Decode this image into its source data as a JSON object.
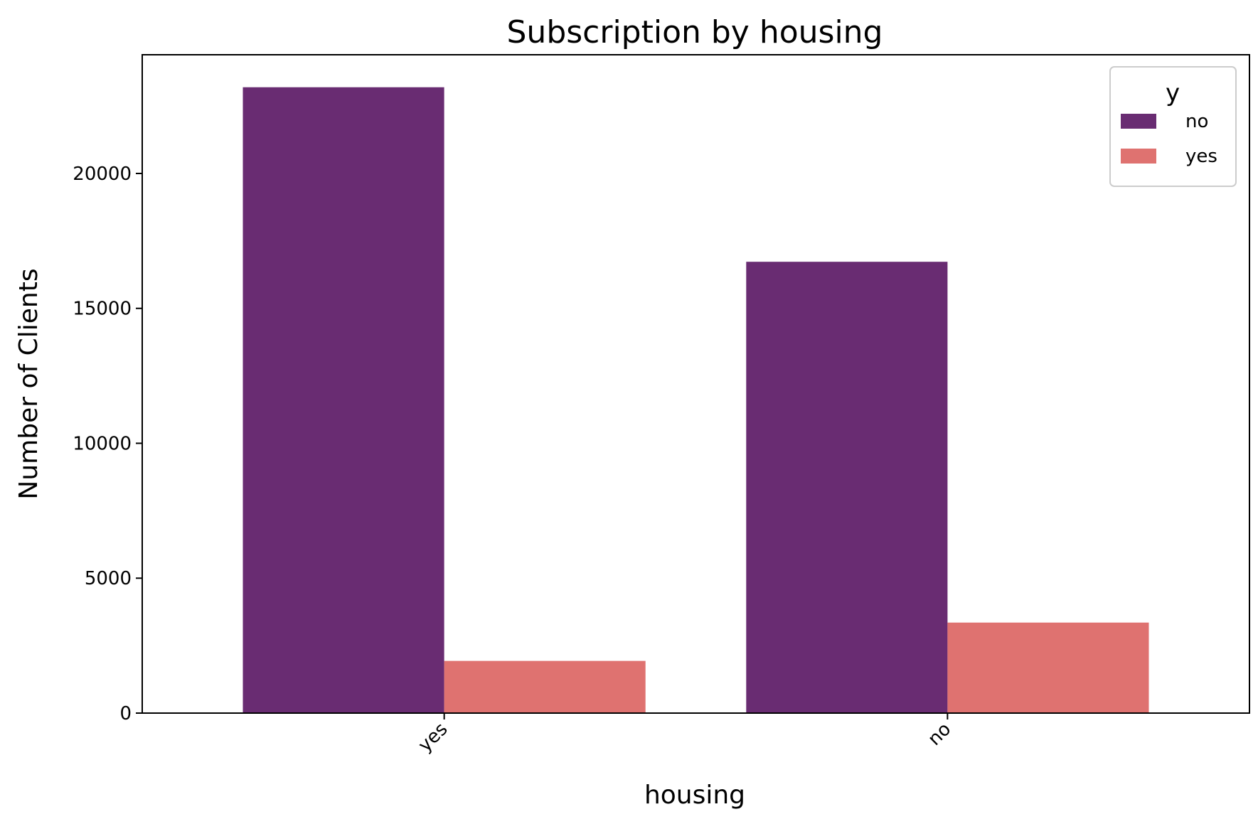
{
  "chart_data": {
    "type": "bar",
    "title": "Subscription by housing",
    "xlabel": "housing",
    "ylabel": "Number of Clients",
    "categories": [
      "yes",
      "no"
    ],
    "series": [
      {
        "name": "no",
        "color": "#692c72",
        "values": [
          23195,
          16727
        ]
      },
      {
        "name": "yes",
        "color": "#df7270",
        "values": [
          1935,
          3354
        ]
      }
    ],
    "ylim": [
      0,
      24400
    ],
    "yticks": [
      0,
      5000,
      10000,
      15000,
      20000
    ],
    "grid": false,
    "legend": {
      "title": "y",
      "position": "top-right"
    }
  }
}
